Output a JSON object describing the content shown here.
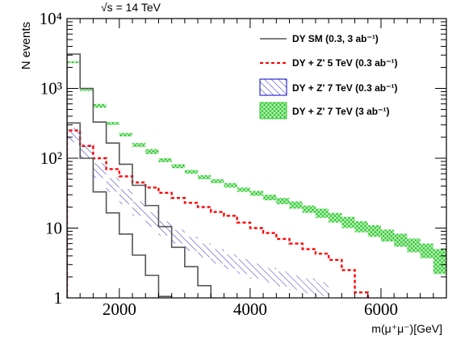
{
  "chart_data": {
    "type": "line",
    "top_label": "√s = 14 TeV",
    "xlabel": "m(μ⁺μ⁻)[GeV]",
    "ylabel": "N events",
    "x_axis": {
      "range": [
        1200,
        7000
      ],
      "tick_labels": [
        "2000",
        "4000",
        "6000"
      ],
      "tick_values": [
        2000,
        4000,
        6000
      ]
    },
    "y_axis": {
      "scale": "log",
      "range": [
        1,
        10000
      ],
      "tick_labels": [
        "1",
        "10",
        "10²",
        "10³",
        "10⁴"
      ],
      "tick_values": [
        1,
        10,
        100,
        1000,
        10000
      ]
    },
    "bin_edges": [
      1200,
      1400,
      1600,
      1800,
      2000,
      2200,
      2400,
      2600,
      2800,
      3000,
      3200,
      3400,
      3600,
      3800,
      4000,
      4200,
      4400,
      4600,
      4800,
      5000,
      5200,
      5400,
      5600,
      5800,
      6000,
      6200,
      6400,
      6600,
      6800,
      7000
    ],
    "legend": [
      {
        "label": "DY SM (0.3, 3 ab⁻¹)",
        "style": "solid-line",
        "color": "#555555"
      },
      {
        "label": "DY + Z' 5 TeV (0.3 ab⁻¹)",
        "style": "dashed-line",
        "color": "#ff0000"
      },
      {
        "label": "DY + Z' 7 TeV (0.3 ab⁻¹)",
        "style": "hatched-band",
        "color": "#0000cc"
      },
      {
        "label": "DY + Z' 7 TeV (3 ab⁻¹)",
        "style": "filled-band",
        "color": "#33cc33"
      }
    ],
    "series": [
      {
        "values": [
          3100,
          1000,
          330,
          165,
          82,
          41,
          21,
          10.5,
          5.3,
          2.8,
          1.5,
          0.8
        ],
        "x_start": 1200,
        "x_end": 3600,
        "style": "solid-line",
        "color": "#555555"
      },
      {
        "values": [
          320,
          100,
          33,
          16.5,
          8.2,
          4.1,
          2.1,
          1.05,
          0.6
        ],
        "x_start": 1200,
        "x_end": 3000,
        "style": "solid-line",
        "color": "#555555"
      },
      {
        "values": [
          250,
          150,
          100,
          70,
          55,
          45,
          38,
          32,
          27,
          23,
          20,
          17,
          15,
          12,
          10,
          8.5,
          7,
          6,
          5,
          4.3,
          3.5,
          2.5,
          1.2,
          0.5
        ],
        "x_start": 1200,
        "x_end": 6000,
        "style": "dashed-line",
        "color": "#ff0000"
      },
      {
        "low": [
          170,
          100,
          52,
          33,
          22,
          15,
          10.5,
          7.8,
          6,
          4.7,
          3.8,
          3.1,
          2.6,
          2.2,
          1.9,
          1.65,
          1.45,
          1.3,
          1.15,
          1.05
        ],
        "high": [
          270,
          160,
          85,
          52,
          36,
          24,
          17,
          12.5,
          9.5,
          7.5,
          6,
          5,
          4.2,
          3.6,
          3.1,
          2.7,
          2.4,
          2.1,
          1.9,
          1.7
        ],
        "x_start": 1200,
        "x_end": 5200,
        "style": "hatched-band",
        "color": "#0000cc"
      },
      {
        "low": [
          2300,
          920,
          530,
          300,
          205,
          145,
          115,
          88,
          72,
          60,
          50,
          44,
          38,
          33,
          29,
          25,
          22,
          19,
          16.5,
          14,
          12,
          10,
          8.7,
          7.5,
          6.4,
          5.4,
          4.5,
          3.7,
          2.2
        ],
        "high": [
          2450,
          1010,
          600,
          330,
          230,
          165,
          135,
          100,
          82,
          68,
          57,
          50,
          44,
          38,
          34,
          30,
          27,
          24,
          21,
          19,
          16.5,
          14.5,
          12.5,
          11,
          9.5,
          8.3,
          7.1,
          6,
          5
        ],
        "x_start": 1200,
        "x_end": 7000,
        "style": "filled-band",
        "color": "#33cc33"
      }
    ]
  }
}
